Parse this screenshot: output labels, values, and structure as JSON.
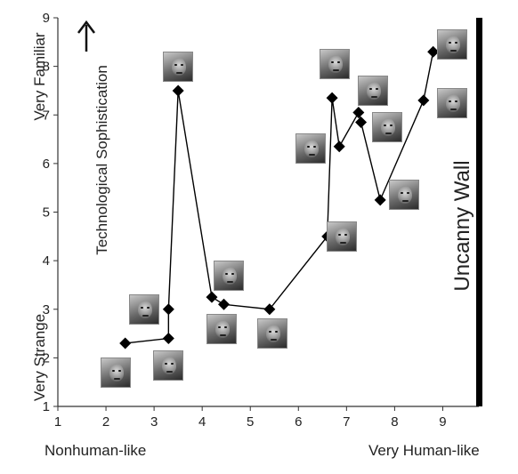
{
  "chart_data": {
    "type": "line",
    "title": "",
    "xlabel": "",
    "ylabel": "",
    "xlim": [
      1,
      9.8
    ],
    "ylim": [
      1,
      9
    ],
    "x_ticks": [
      "1",
      "2",
      "3",
      "4",
      "5",
      "6",
      "7",
      "8",
      "9"
    ],
    "y_ticks": [
      "1",
      "2",
      "3",
      "4",
      "5",
      "6",
      "7",
      "8",
      "9"
    ],
    "grid": false,
    "series_color": "#000000",
    "marker": "diamond",
    "x": [
      2.4,
      3.3,
      3.3,
      3.5,
      4.2,
      4.45,
      5.4,
      6.6,
      6.7,
      6.85,
      7.25,
      7.3,
      7.7,
      8.6,
      8.8
    ],
    "y": [
      2.3,
      2.4,
      3.0,
      7.5,
      3.25,
      3.1,
      3.0,
      4.5,
      7.35,
      6.35,
      7.05,
      6.85,
      5.25,
      7.3,
      8.3
    ],
    "annotations": {
      "y_top": "Very Familiar",
      "y_bottom": "Very Strange",
      "x_left": "Nonhuman-like",
      "x_right": "Very Human-like",
      "arrow_text": "Technological Sophistication",
      "wall_text": "Uncanny Wall",
      "wall_x": 9.75
    },
    "face_thumbnails": [
      {
        "x": 2.2,
        "y": 1.7
      },
      {
        "x": 3.3,
        "y": 1.85
      },
      {
        "x": 2.8,
        "y": 3.0
      },
      {
        "x": 3.5,
        "y": 8.0
      },
      {
        "x": 4.55,
        "y": 3.7
      },
      {
        "x": 4.4,
        "y": 2.6
      },
      {
        "x": 5.45,
        "y": 2.5
      },
      {
        "x": 6.25,
        "y": 6.3
      },
      {
        "x": 6.9,
        "y": 4.5
      },
      {
        "x": 6.75,
        "y": 8.05
      },
      {
        "x": 7.55,
        "y": 7.5
      },
      {
        "x": 7.85,
        "y": 6.75
      },
      {
        "x": 8.2,
        "y": 5.35
      },
      {
        "x": 9.2,
        "y": 8.45
      },
      {
        "x": 9.2,
        "y": 7.25
      }
    ]
  }
}
